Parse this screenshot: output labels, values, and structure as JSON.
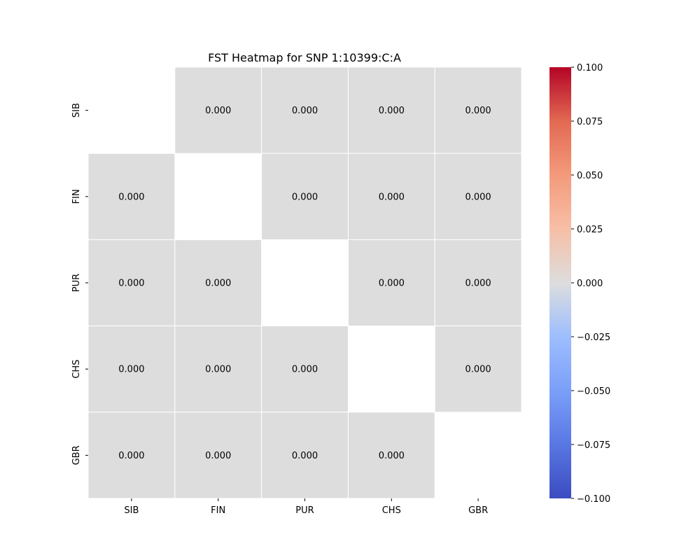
{
  "chart_data": {
    "type": "heatmap",
    "title": "FST Heatmap for SNP 1:10399:C:A",
    "xlabel": "",
    "ylabel": "",
    "x_categories": [
      "SIB",
      "FIN",
      "PUR",
      "CHS",
      "GBR"
    ],
    "y_categories": [
      "SIB",
      "FIN",
      "PUR",
      "CHS",
      "GBR"
    ],
    "values": [
      [
        null,
        0.0,
        0.0,
        0.0,
        0.0
      ],
      [
        0.0,
        null,
        0.0,
        0.0,
        0.0
      ],
      [
        0.0,
        0.0,
        null,
        0.0,
        0.0
      ],
      [
        0.0,
        0.0,
        0.0,
        null,
        0.0
      ],
      [
        0.0,
        0.0,
        0.0,
        0.0,
        null
      ]
    ],
    "cell_labels": [
      [
        null,
        "0.000",
        "0.000",
        "0.000",
        "0.000"
      ],
      [
        "0.000",
        null,
        "0.000",
        "0.000",
        "0.000"
      ],
      [
        "0.000",
        "0.000",
        null,
        "0.000",
        "0.000"
      ],
      [
        "0.000",
        "0.000",
        "0.000",
        null,
        "0.000"
      ],
      [
        "0.000",
        "0.000",
        "0.000",
        "0.000",
        null
      ]
    ],
    "colorbar": {
      "colormap": "coolwarm",
      "vmin": -0.1,
      "vmax": 0.1,
      "ticks": [
        -0.1,
        -0.075,
        -0.05,
        -0.025,
        0.0,
        0.025,
        0.05,
        0.075,
        0.1
      ],
      "tick_labels": [
        "−0.100",
        "−0.075",
        "−0.050",
        "−0.025",
        "0.000",
        "0.025",
        "0.050",
        "0.075",
        "0.100"
      ]
    },
    "grid": false,
    "diagonal_masked": true,
    "legend": "colorbar-right"
  }
}
